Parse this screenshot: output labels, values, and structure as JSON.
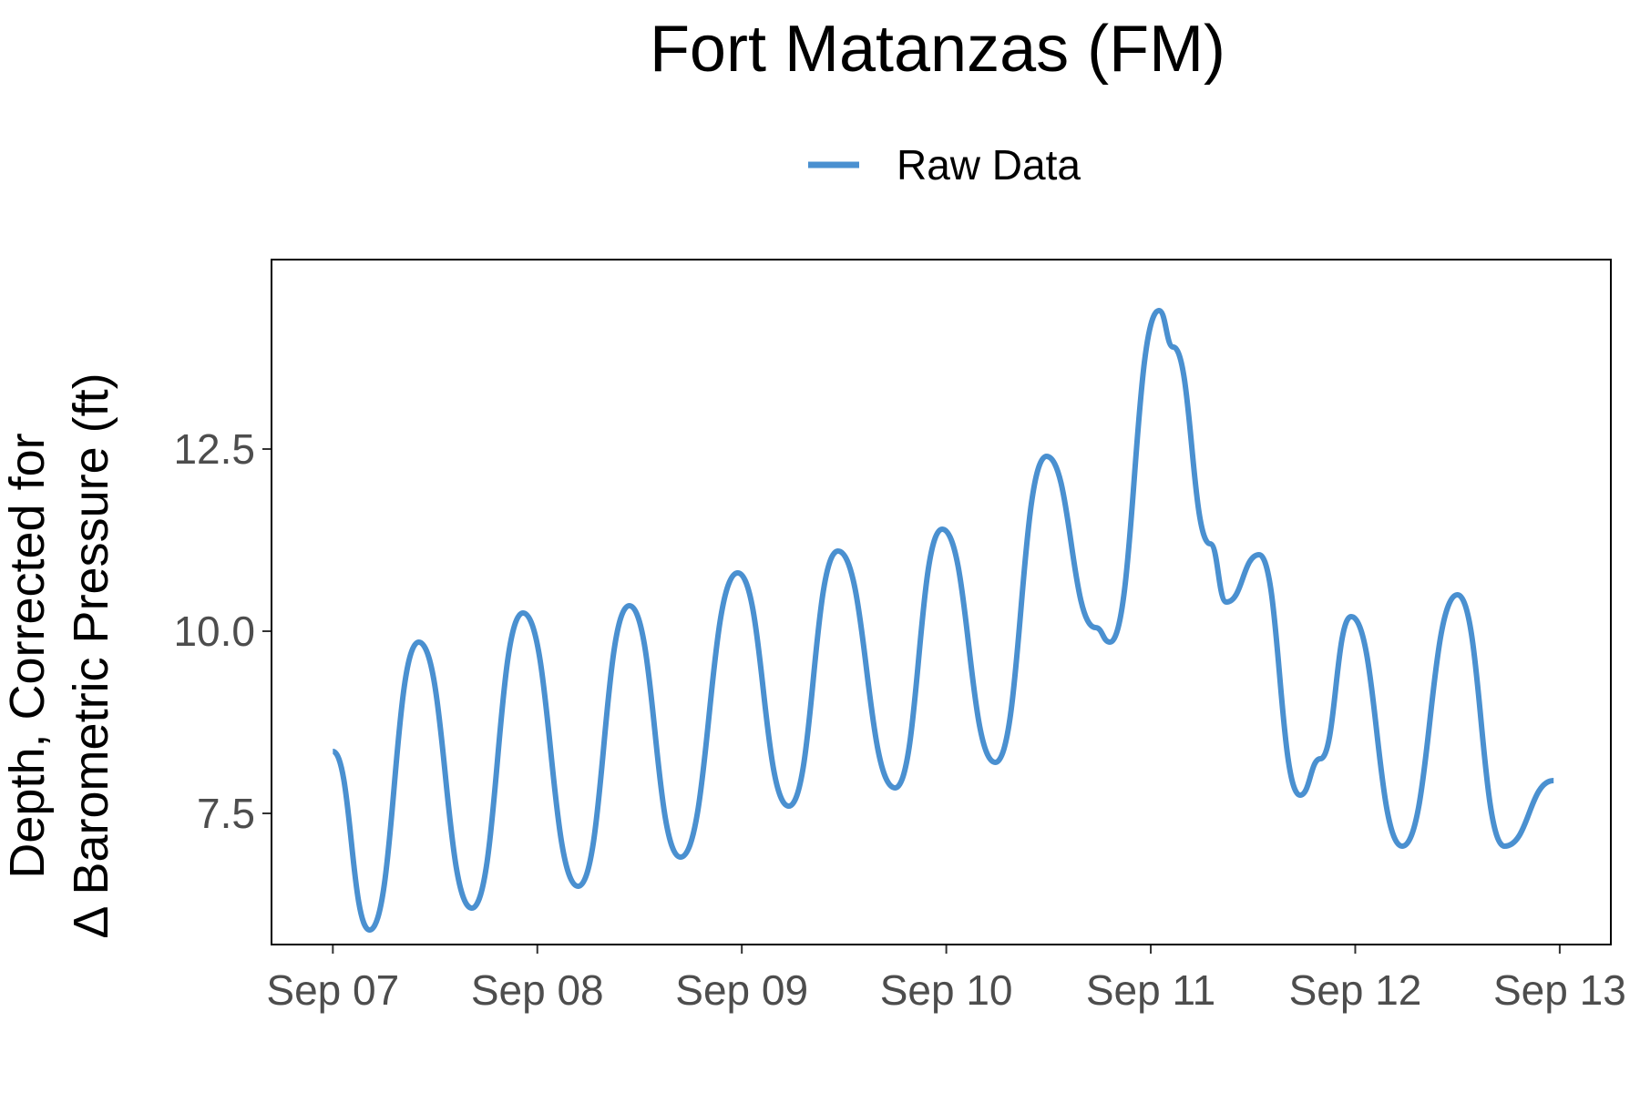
{
  "chart_data": {
    "type": "line",
    "title": "Fort Matanzas (FM)",
    "ylabel_line1": "Depth, Corrected for",
    "ylabel_line2": "Δ Barometric Pressure (ft)",
    "xlabel": "",
    "xlim": [
      -0.3,
      6.25
    ],
    "ylim": [
      5.7,
      15.1
    ],
    "x_unit": "days since Sep 07",
    "x_ticks": [
      {
        "value": 0,
        "label": "Sep 07"
      },
      {
        "value": 1,
        "label": "Sep 08"
      },
      {
        "value": 2,
        "label": "Sep 09"
      },
      {
        "value": 3,
        "label": "Sep 10"
      },
      {
        "value": 4,
        "label": "Sep 11"
      },
      {
        "value": 5,
        "label": "Sep 12"
      },
      {
        "value": 6,
        "label": "Sep 13"
      }
    ],
    "y_ticks": [
      {
        "value": 7.5,
        "label": "7.5"
      },
      {
        "value": 10.0,
        "label": "10.0"
      },
      {
        "value": 12.5,
        "label": "12.5"
      }
    ],
    "grid": false,
    "legend_position": "top",
    "series": [
      {
        "name": "Raw Data",
        "color": "#4a90d0",
        "x": [
          0.0,
          0.18,
          0.42,
          0.68,
          0.93,
          1.2,
          1.45,
          1.7,
          1.98,
          2.23,
          2.47,
          2.75,
          2.98,
          3.24,
          3.49,
          3.73,
          3.8,
          4.04,
          4.11,
          4.29,
          4.37,
          4.53,
          4.73,
          4.83,
          4.98,
          5.23,
          5.5,
          5.73,
          5.97
        ],
        "y": [
          8.35,
          5.9,
          9.85,
          6.2,
          10.25,
          6.5,
          10.35,
          6.9,
          10.8,
          7.6,
          11.1,
          7.85,
          11.4,
          8.2,
          12.4,
          10.05,
          9.85,
          14.4,
          13.9,
          11.2,
          10.4,
          11.05,
          7.75,
          8.25,
          10.2,
          7.05,
          10.5,
          7.05,
          7.95
        ]
      }
    ]
  }
}
